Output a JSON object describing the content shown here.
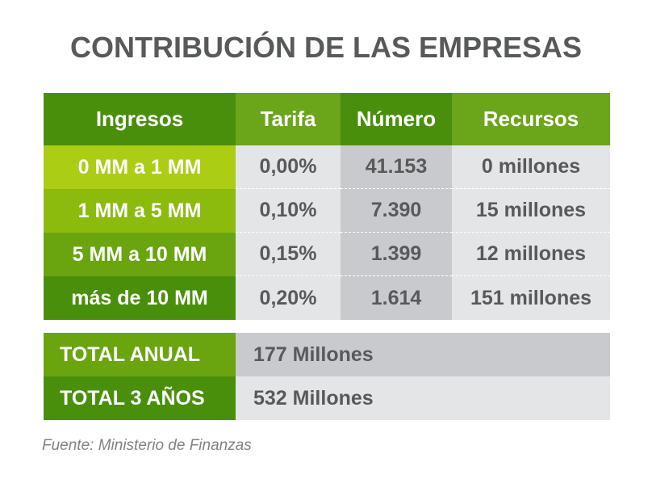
{
  "title": "CONTRIBUCIÓN DE LAS EMPRESAS",
  "table": {
    "headers": [
      "Ingresos",
      "Tarifa",
      "Número",
      "Recursos"
    ],
    "rows": [
      [
        "0 MM a 1 MM",
        "0,00%",
        "41.153",
        "0 millones"
      ],
      [
        "1 MM a 5 MM",
        "0,10%",
        "7.390",
        "15 millones"
      ],
      [
        "5 MM a 10 MM",
        "0,15%",
        "1.399",
        "12 millones"
      ],
      [
        "más de 10 MM",
        "0,20%",
        "1.614",
        "151 millones"
      ]
    ]
  },
  "totals": [
    {
      "label": "TOTAL ANUAL",
      "value": "177 Millones"
    },
    {
      "label": "TOTAL 3 AÑOS",
      "value": "532 Millones"
    }
  ],
  "source": "Fuente: Ministerio de Finanzas",
  "colors": {
    "header_dark_green": "#4a8f0c",
    "header_light_green": "#6aa51a",
    "row1_green": "#abcd14",
    "row2_green": "#8cbb0e",
    "row3_green": "#6aa510",
    "row4_green": "#4a8f0c",
    "cell_light_gray": "#e4e5e7",
    "cell_dark_gray": "#c9cacd",
    "text_gray": "#58595b"
  }
}
